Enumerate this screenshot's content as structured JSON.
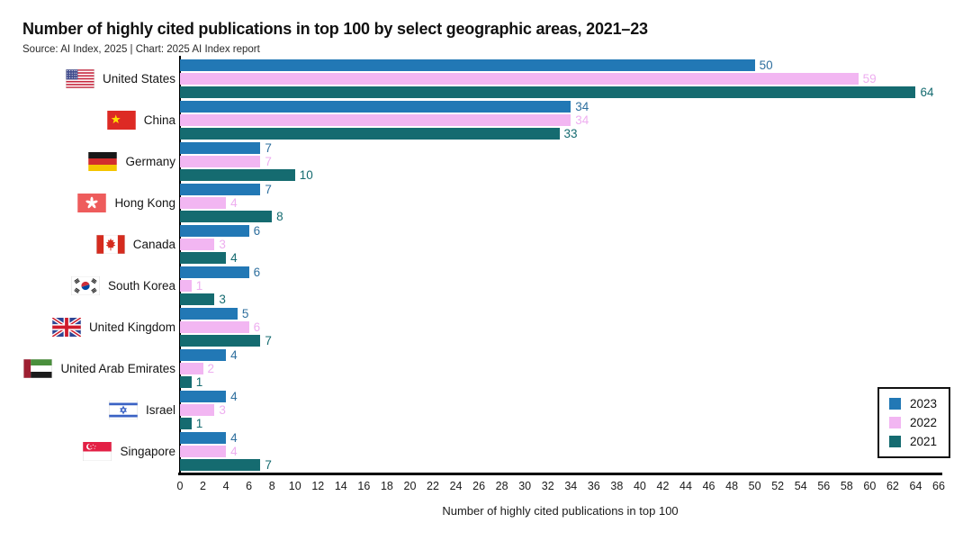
{
  "header": {
    "title": "Number of highly cited publications in top 100 by select geographic areas, 2021–23",
    "subtitle": "Source: AI Index, 2025 | Chart: 2025 AI Index report"
  },
  "chart_data": {
    "type": "bar",
    "orientation": "horizontal",
    "title": "Number of highly cited publications in top 100 by select geographic areas, 2021–23",
    "xlabel": "Number of highly cited publications in top 100",
    "xlim": [
      0,
      66
    ],
    "xtick_step": 2,
    "grid": false,
    "legend_position": "bottom-right",
    "categories": [
      {
        "label": "United States",
        "flag": "us-flag"
      },
      {
        "label": "China",
        "flag": "cn-flag"
      },
      {
        "label": "Germany",
        "flag": "de-flag"
      },
      {
        "label": "Hong Kong",
        "flag": "hk-flag"
      },
      {
        "label": "Canada",
        "flag": "ca-flag"
      },
      {
        "label": "South Korea",
        "flag": "kr-flag"
      },
      {
        "label": "United Kingdom",
        "flag": "gb-flag"
      },
      {
        "label": "United Arab Emirates",
        "flag": "ae-flag"
      },
      {
        "label": "Israel",
        "flag": "il-flag"
      },
      {
        "label": "Singapore",
        "flag": "sg-flag"
      }
    ],
    "series": [
      {
        "name": "2023",
        "color": "#2278b5",
        "label_color": "#2e6f9e",
        "values": [
          50,
          34,
          7,
          7,
          6,
          6,
          5,
          4,
          4,
          4
        ]
      },
      {
        "name": "2022",
        "color": "#f2b6f2",
        "label_color": "#eeaef0",
        "values": [
          59,
          34,
          7,
          4,
          3,
          1,
          6,
          2,
          3,
          4
        ]
      },
      {
        "name": "2021",
        "color": "#156b70",
        "label_color": "#156b70",
        "values": [
          64,
          33,
          10,
          8,
          4,
          3,
          7,
          1,
          1,
          7
        ]
      }
    ]
  }
}
